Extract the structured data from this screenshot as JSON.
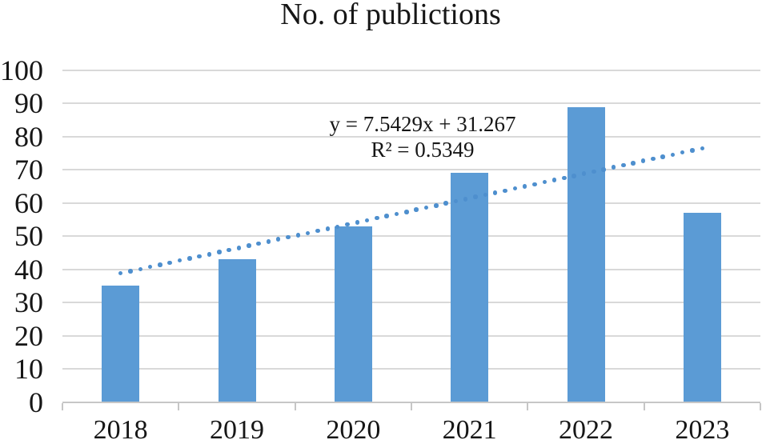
{
  "page": {
    "background": "#ffffff"
  },
  "chart_data": {
    "type": "bar",
    "title": "No. of publictions",
    "categories": [
      "2018",
      "2019",
      "2020",
      "2021",
      "2022",
      "2023"
    ],
    "values": [
      35,
      43,
      53,
      69,
      89,
      57
    ],
    "series_color": "#5b9bd5",
    "xlabel": "",
    "ylabel": "",
    "ylim": [
      0,
      100
    ],
    "ytick_step": 10,
    "ytick_labels": [
      "0",
      "10",
      "20",
      "30",
      "40",
      "50",
      "60",
      "70",
      "80",
      "90",
      "100"
    ],
    "grid": "horizontal",
    "gridline_color": "#d9d9d9",
    "legend_position": "none",
    "trendline": {
      "style": "dotted",
      "color": "#4e8fce",
      "slope": 7.5429,
      "intercept": 31.267,
      "x_values": [
        1,
        2,
        3,
        4,
        5,
        6
      ],
      "equation_label": "y = 7.5429x + 31.267",
      "r_squared_label": "R² = 0.5349"
    }
  }
}
